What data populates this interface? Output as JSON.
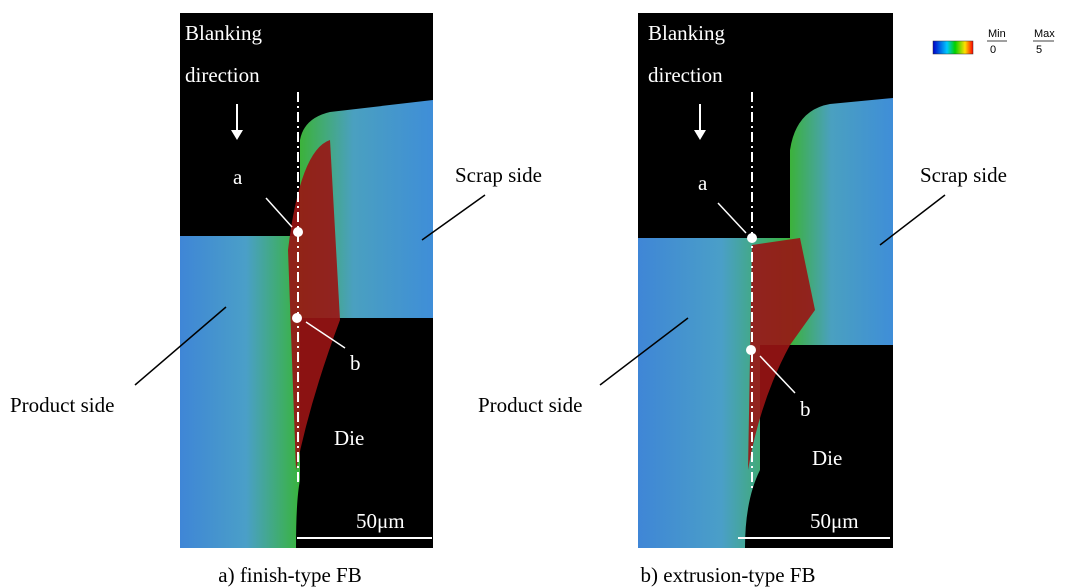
{
  "legend": {
    "min_label": "Min",
    "max_label": "Max",
    "min": "0",
    "max": "5"
  },
  "panels": [
    {
      "blanking": [
        "Blanking",
        "direction"
      ],
      "point_a": "a",
      "point_b": "b",
      "scrap": "Scrap side",
      "product": "Product side",
      "die": "Die",
      "scale": "50μm",
      "caption": "a) finish-type FB"
    },
    {
      "blanking": [
        "Blanking",
        "direction"
      ],
      "point_a": "a",
      "point_b": "b",
      "scrap": "Scrap side",
      "product": "Product side",
      "die": "Die",
      "scale": "50μm",
      "caption": "b) extrusion-type FB"
    }
  ]
}
